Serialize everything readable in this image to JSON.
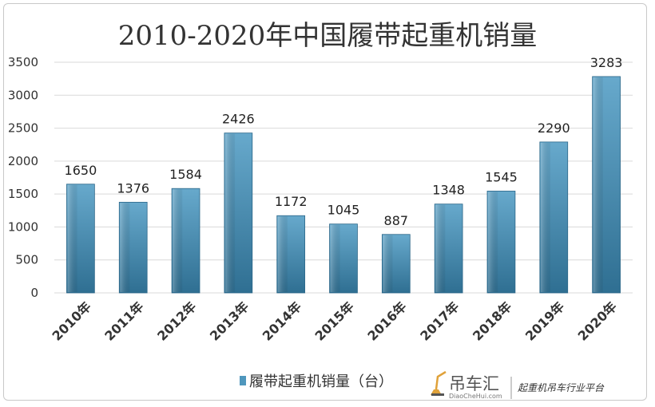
{
  "chart_data": {
    "type": "bar",
    "title": "2010-2020年中国履带起重机销量",
    "categories": [
      "2010年",
      "2011年",
      "2012年",
      "2013年",
      "2014年",
      "2015年",
      "2016年",
      "2017年",
      "2018年",
      "2019年",
      "2020年"
    ],
    "series": [
      {
        "name": "履带起重机销量（台）",
        "values": [
          1650,
          1376,
          1584,
          2426,
          1172,
          1045,
          887,
          1348,
          1545,
          2290,
          3283
        ]
      }
    ],
    "yticks": [
      "0",
      "500",
      "1000",
      "1500",
      "2000",
      "2500",
      "3000",
      "3500"
    ],
    "ylim": [
      0,
      3500
    ],
    "grid": true,
    "legend_position": "bottom",
    "colors": {
      "bar": "#4f97bd",
      "bar_dark": "#2f6f92",
      "grid": "#d9d9d9"
    }
  },
  "watermark": {
    "brand": "吊车汇",
    "url": "DiaoCheHui.com",
    "slogan": "起重机吊车行业平台"
  }
}
